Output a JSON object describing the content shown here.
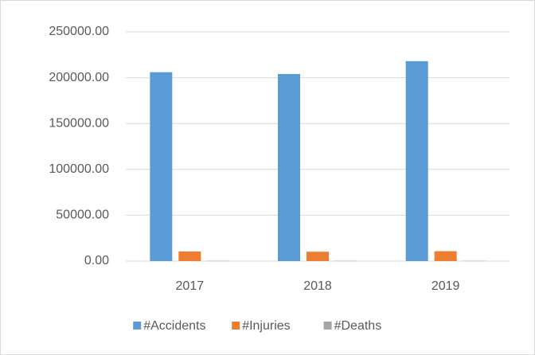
{
  "chart_data": {
    "type": "bar",
    "categories": [
      "2017",
      "2018",
      "2019"
    ],
    "series": [
      {
        "name": "#Accidents",
        "color": "#5b9bd5",
        "values": [
          206000,
          204000,
          218000
        ]
      },
      {
        "name": "#Injuries",
        "color": "#ed7d31",
        "values": [
          10500,
          10200,
          10800
        ]
      },
      {
        "name": "#Deaths",
        "color": "#a5a5a5",
        "values": [
          300,
          300,
          300
        ]
      }
    ],
    "ylim": [
      0,
      250000
    ],
    "yticks": [
      {
        "value": 0,
        "label": "0.00"
      },
      {
        "value": 50000,
        "label": "50000.00"
      },
      {
        "value": 100000,
        "label": "100000.00"
      },
      {
        "value": 150000,
        "label": "150000.00"
      },
      {
        "value": 200000,
        "label": "200000.00"
      },
      {
        "value": 250000,
        "label": "250000.00"
      }
    ],
    "grid": true,
    "legend": "bottom"
  }
}
